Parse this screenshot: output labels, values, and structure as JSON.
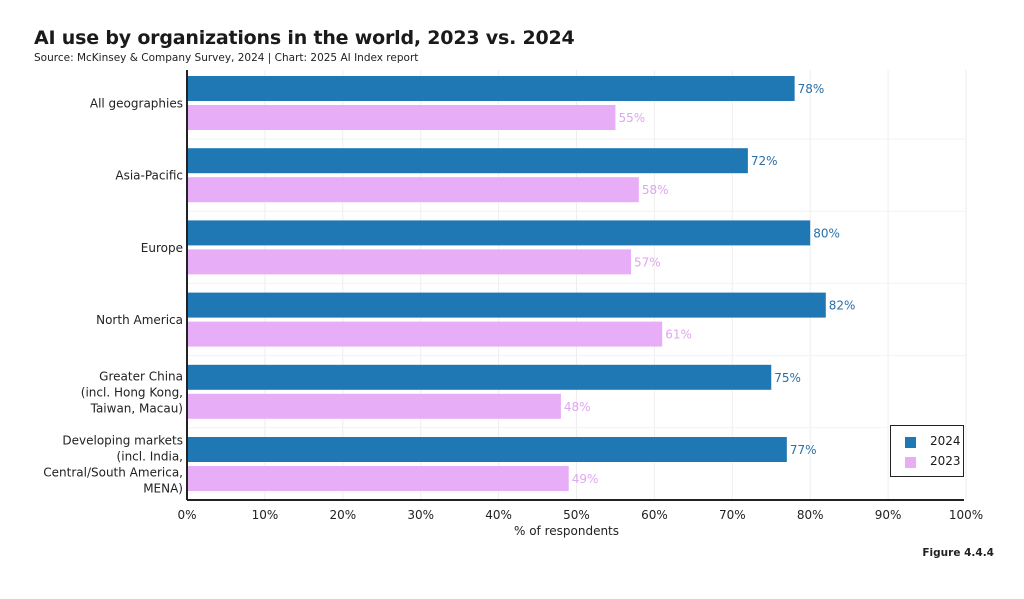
{
  "header": {
    "title": "AI use by organizations in the world, 2023 vs. 2024",
    "subtitle": "Source: McKinsey & Company Survey, 2024 | Chart: 2025 AI Index report"
  },
  "footer": {
    "figure_label": "Figure 4.4.4"
  },
  "colors": {
    "series_2024": "#1f77b4",
    "series_2023": "#e8adf7",
    "label_2024": "#2a6fa8",
    "label_2023": "#e0a6f0",
    "axis": "#222222",
    "grid": "#eeeeee"
  },
  "chart_data": {
    "type": "bar",
    "orientation": "horizontal",
    "title": "AI use by organizations in the world, 2023 vs. 2024",
    "subtitle": "Source: McKinsey & Company Survey, 2024 | Chart: 2025 AI Index report",
    "xlabel": "% of respondents",
    "ylabel": "",
    "xlim": [
      0,
      100
    ],
    "x_ticks": [
      "0%",
      "10%",
      "20%",
      "30%",
      "40%",
      "50%",
      "60%",
      "70%",
      "80%",
      "90%",
      "100%"
    ],
    "grid": true,
    "legend_position": "bottom-right",
    "categories": [
      [
        "All geographies"
      ],
      [
        "Asia-Pacific"
      ],
      [
        "Europe"
      ],
      [
        "North America"
      ],
      [
        "Greater China",
        "(incl. Hong Kong,",
        "Taiwan, Macau)"
      ],
      [
        "Developing markets",
        "(incl. India,",
        "Central/South America,",
        "MENA)"
      ]
    ],
    "series": [
      {
        "name": "2024",
        "values": [
          78,
          72,
          80,
          82,
          75,
          77
        ],
        "labels": [
          "78%",
          "72%",
          "80%",
          "82%",
          "75%",
          "77%"
        ]
      },
      {
        "name": "2023",
        "values": [
          55,
          58,
          57,
          61,
          48,
          49
        ],
        "labels": [
          "55%",
          "58%",
          "57%",
          "61%",
          "48%",
          "49%"
        ]
      }
    ]
  },
  "legend": {
    "items": [
      {
        "label": "2024"
      },
      {
        "label": "2023"
      }
    ]
  }
}
